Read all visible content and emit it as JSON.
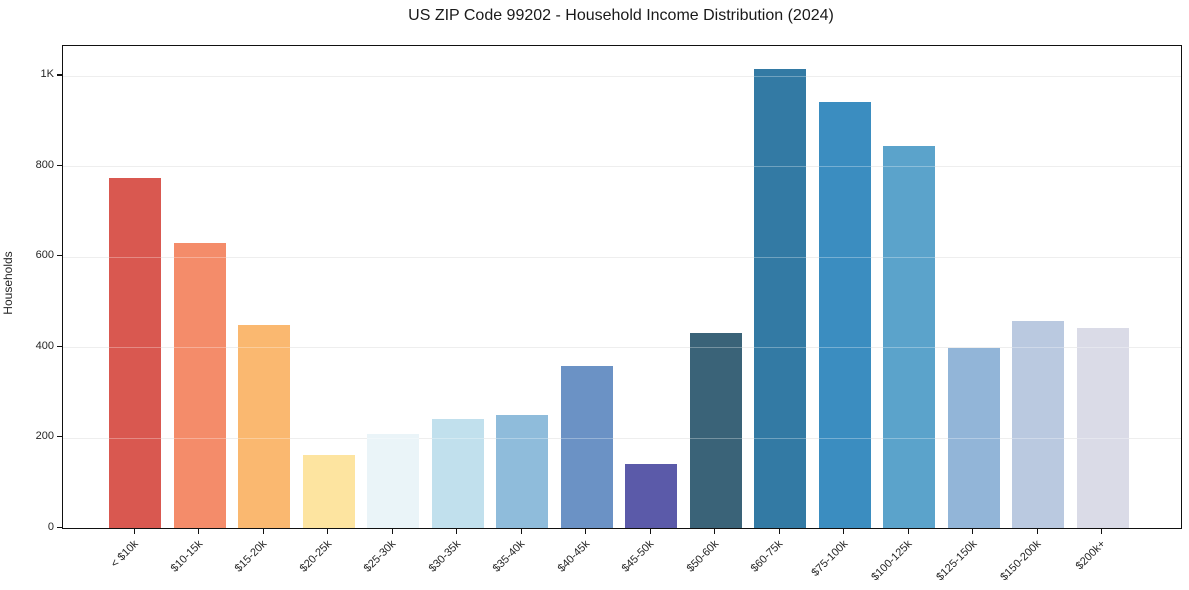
{
  "chart_data": {
    "type": "bar",
    "title": "US ZIP Code 99202 - Household Income Distribution (2024)",
    "xlabel": "",
    "ylabel": "Households",
    "categories": [
      "< $10k",
      "$10-15k",
      "$15-20k",
      "$20-25k",
      "$25-30k",
      "$30-35k",
      "$35-40k",
      "$40-45k",
      "$45-50k",
      "$50-60k",
      "$60-75k",
      "$75-100k",
      "$100-125k",
      "$125-150k",
      "$150-200k",
      "$200k+"
    ],
    "values": [
      775,
      630,
      449,
      162,
      207,
      242,
      249,
      358,
      142,
      432,
      1015,
      943,
      845,
      398,
      457,
      442
    ],
    "bar_colors": [
      "#d95850",
      "#f48c6a",
      "#fab870",
      "#fde4a0",
      "#eaf4f8",
      "#c1e0ed",
      "#8fbcdb",
      "#6b92c5",
      "#5b5aa9",
      "#3a6378",
      "#337aa4",
      "#3b8dc0",
      "#5ba3cb",
      "#92b5d8",
      "#bac9e0",
      "#dadbe7"
    ],
    "ylim": [
      0,
      1066
    ],
    "yticks": [
      {
        "value": 0,
        "label": "0"
      },
      {
        "value": 200,
        "label": "200"
      },
      {
        "value": 400,
        "label": "400"
      },
      {
        "value": 600,
        "label": "600"
      },
      {
        "value": 800,
        "label": "800"
      },
      {
        "value": 1000,
        "label": "1K"
      }
    ],
    "grid": "horizontal",
    "legend": "none",
    "x_tick_rotation_deg": 45
  }
}
